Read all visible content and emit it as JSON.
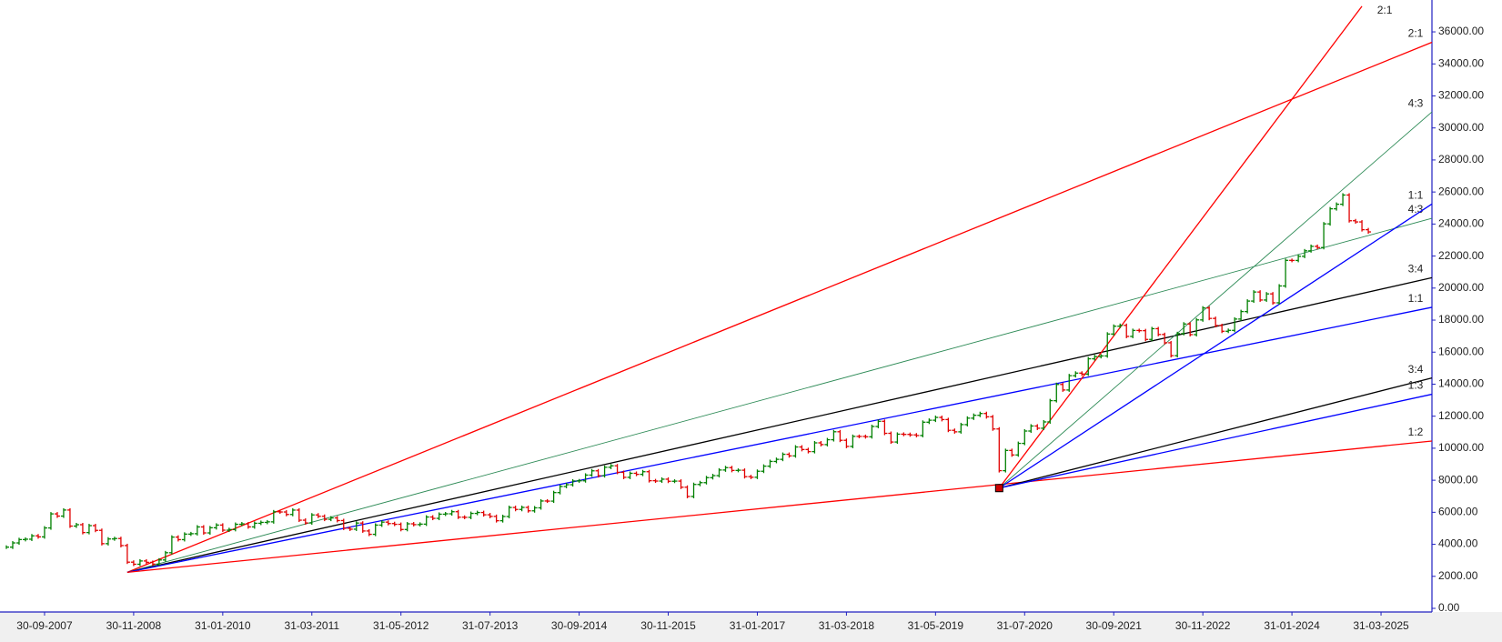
{
  "chart_data": {
    "type": "ohlc-fan",
    "xlim": [
      "28-02-2007",
      "30-11-2025"
    ],
    "xticks": [
      "30-09-2007",
      "30-11-2008",
      "31-01-2010",
      "31-03-2011",
      "31-05-2012",
      "31-07-2013",
      "30-09-2014",
      "30-11-2015",
      "31-01-2017",
      "31-03-2018",
      "31-05-2019",
      "31-07-2020",
      "30-09-2021",
      "30-11-2022",
      "31-01-2024",
      "31-03-2025"
    ],
    "ylim": [
      0,
      37990
    ],
    "yticks": [
      {
        "value": 0,
        "label": "0.00"
      },
      {
        "value": 2000,
        "label": "2000.00"
      },
      {
        "value": 4000,
        "label": "4000.00"
      },
      {
        "value": 6000,
        "label": "6000.00"
      },
      {
        "value": 8000,
        "label": "8000.00"
      },
      {
        "value": 10000,
        "label": "10000.00"
      },
      {
        "value": 12000,
        "label": "12000.00"
      },
      {
        "value": 14000,
        "label": "14000.00"
      },
      {
        "value": 16000,
        "label": "16000.00"
      },
      {
        "value": 18000,
        "label": "18000.00"
      },
      {
        "value": 20000,
        "label": "20000.00"
      },
      {
        "value": 22000,
        "label": "22000.00"
      },
      {
        "value": 24000,
        "label": "24000.00"
      },
      {
        "value": 26000,
        "label": "26000.00"
      },
      {
        "value": 28000,
        "label": "28000.00"
      },
      {
        "value": 30000,
        "label": "30000.00"
      },
      {
        "value": 32000,
        "label": "32000.00"
      },
      {
        "value": 34000,
        "label": "34000.00"
      },
      {
        "value": 36000,
        "label": "36000.00"
      }
    ],
    "up_color": "#008000",
    "down_color": "#e00000",
    "x": [
      "31-03-2007",
      "30-04-2007",
      "31-05-2007",
      "30-06-2007",
      "31-07-2007",
      "31-08-2007",
      "30-09-2007",
      "31-10-2007",
      "30-11-2007",
      "31-12-2007",
      "31-01-2008",
      "29-02-2008",
      "31-03-2008",
      "30-04-2008",
      "31-05-2008",
      "30-06-2008",
      "31-07-2008",
      "31-08-2008",
      "30-09-2008",
      "31-10-2008",
      "30-11-2008",
      "31-12-2008",
      "31-01-2009",
      "28-02-2009",
      "31-03-2009",
      "30-04-2009",
      "31-05-2009",
      "30-06-2009",
      "31-07-2009",
      "31-08-2009",
      "30-09-2009",
      "31-10-2009",
      "30-11-2009",
      "31-12-2009",
      "31-01-2010",
      "28-02-2010",
      "31-03-2010",
      "30-04-2010",
      "31-05-2010",
      "30-06-2010",
      "31-07-2010",
      "31-08-2010",
      "30-09-2010",
      "31-10-2010",
      "30-11-2010",
      "31-12-2010",
      "31-01-2011",
      "28-02-2011",
      "31-03-2011",
      "30-04-2011",
      "31-05-2011",
      "30-06-2011",
      "31-07-2011",
      "31-08-2011",
      "30-09-2011",
      "31-10-2011",
      "30-11-2011",
      "31-12-2011",
      "31-01-2012",
      "29-02-2012",
      "31-03-2012",
      "30-04-2012",
      "31-05-2012",
      "30-06-2012",
      "31-07-2012",
      "31-08-2012",
      "30-09-2012",
      "31-10-2012",
      "30-11-2012",
      "31-12-2012",
      "31-01-2013",
      "28-02-2013",
      "31-03-2013",
      "30-04-2013",
      "31-05-2013",
      "30-06-2013",
      "31-07-2013",
      "31-08-2013",
      "30-09-2013",
      "31-10-2013",
      "30-11-2013",
      "31-12-2013",
      "31-01-2014",
      "28-02-2014",
      "31-03-2014",
      "30-04-2014",
      "31-05-2014",
      "30-06-2014",
      "31-07-2014",
      "31-08-2014",
      "30-09-2014",
      "31-10-2014",
      "30-11-2014",
      "31-12-2014",
      "31-01-2015",
      "28-02-2015",
      "31-03-2015",
      "30-04-2015",
      "31-05-2015",
      "30-06-2015",
      "31-07-2015",
      "31-08-2015",
      "30-09-2015",
      "31-10-2015",
      "30-11-2015",
      "31-12-2015",
      "31-01-2016",
      "29-02-2016",
      "31-03-2016",
      "30-04-2016",
      "31-05-2016",
      "30-06-2016",
      "31-07-2016",
      "31-08-2016",
      "30-09-2016",
      "31-10-2016",
      "30-11-2016",
      "31-12-2016",
      "31-01-2017",
      "28-02-2017",
      "31-03-2017",
      "30-04-2017",
      "31-05-2017",
      "30-06-2017",
      "31-07-2017",
      "31-08-2017",
      "30-09-2017",
      "31-10-2017",
      "30-11-2017",
      "31-12-2017",
      "31-01-2018",
      "28-02-2018",
      "31-03-2018",
      "30-04-2018",
      "31-05-2018",
      "30-06-2018",
      "31-07-2018",
      "31-08-2018",
      "30-09-2018",
      "31-10-2018",
      "30-11-2018",
      "31-12-2018",
      "31-01-2019",
      "28-02-2019",
      "31-03-2019",
      "30-04-2019",
      "31-05-2019",
      "30-06-2019",
      "31-07-2019",
      "31-08-2019",
      "30-09-2019",
      "31-10-2019",
      "30-11-2019",
      "31-12-2019",
      "31-01-2020",
      "29-02-2020",
      "31-03-2020",
      "30-04-2020",
      "31-05-2020",
      "30-06-2020",
      "31-07-2020",
      "31-08-2020",
      "30-09-2020",
      "31-10-2020",
      "30-11-2020",
      "31-12-2020",
      "31-01-2021",
      "28-02-2021",
      "31-03-2021",
      "30-04-2021",
      "31-05-2021",
      "30-06-2021",
      "31-07-2021",
      "31-08-2021",
      "30-09-2021",
      "31-10-2021",
      "30-11-2021",
      "31-12-2021",
      "31-01-2022",
      "28-02-2022",
      "31-03-2022",
      "30-04-2022",
      "31-05-2022",
      "30-06-2022",
      "31-07-2022",
      "31-08-2022",
      "30-09-2022",
      "31-10-2022",
      "30-11-2022",
      "31-12-2022",
      "31-01-2023",
      "28-02-2023",
      "31-03-2023",
      "30-04-2023",
      "31-05-2023",
      "30-06-2023",
      "31-07-2023",
      "31-08-2023",
      "30-09-2023",
      "31-10-2023",
      "30-11-2023",
      "31-12-2023",
      "31-01-2024",
      "29-02-2024",
      "31-03-2024",
      "30-04-2024",
      "31-05-2024",
      "30-06-2024",
      "31-07-2024",
      "31-08-2024",
      "30-09-2024",
      "31-10-2024",
      "30-11-2024",
      "31-12-2024",
      "31-01-2025"
    ],
    "series": [
      {
        "values": [
          3822,
          4087,
          4296,
          4318,
          4528,
          4464,
          5021,
          5900,
          5762,
          6139,
          5137,
          5224,
          4734,
          5165,
          4870,
          4040,
          4333,
          4360,
          3921,
          2885,
          2755,
          2959,
          2874,
          2763,
          3021,
          3474,
          4449,
          4291,
          4636,
          4662,
          5084,
          4712,
          5033,
          5201,
          4882,
          4922,
          5249,
          5278,
          5087,
          5313,
          5368,
          5402,
          6030,
          6018,
          5863,
          6135,
          5506,
          5333,
          5834,
          5750,
          5560,
          5647,
          5482,
          5001,
          4943,
          5327,
          4832,
          4624,
          5199,
          5385,
          5296,
          5248,
          4924,
          5279,
          5229,
          5259,
          5703,
          5620,
          5880,
          5905,
          6035,
          5693,
          5683,
          5930,
          5986,
          5843,
          5742,
          5472,
          5735,
          6299,
          6176,
          6304,
          6090,
          6277,
          6704,
          6696,
          7230,
          7611,
          7721,
          7954,
          7965,
          8322,
          8588,
          8283,
          8809,
          8902,
          8491,
          8182,
          8434,
          8369,
          8533,
          7971,
          7949,
          8066,
          7935,
          7946,
          7564,
          6987,
          7738,
          7850,
          8160,
          8288,
          8639,
          8786,
          8611,
          8626,
          8224,
          8186,
          8561,
          8880,
          9174,
          9304,
          9621,
          9521,
          10077,
          9918,
          9789,
          10335,
          10227,
          10531,
          11028,
          10493,
          10114,
          10739,
          10736,
          10714,
          11357,
          11681,
          10930,
          10387,
          10877,
          10863,
          10831,
          10793,
          11624,
          11748,
          11923,
          11789,
          11118,
          11023,
          11474,
          11877,
          12056,
          12168,
          11962,
          11202,
          8598,
          9860,
          9580,
          10302,
          11073,
          11388,
          11248,
          11642,
          12969,
          13982,
          13635,
          14529,
          14691,
          14631,
          15583,
          15722,
          15763,
          17132,
          17618,
          17672,
          16983,
          17354,
          17340,
          16794,
          17465,
          17103,
          16585,
          15780,
          17158,
          17759,
          17094,
          18012,
          18758,
          18105,
          17662,
          17304,
          17360,
          18065,
          18534,
          19189,
          19754,
          19254,
          19638,
          19080,
          20133,
          21731,
          21726,
          21983,
          22327,
          22605,
          22531,
          24011,
          24951,
          25236,
          25811,
          24205,
          24131,
          23645,
          23508
        ]
      }
    ],
    "fan_lines": [
      {
        "label": "2:1",
        "color": "#ff0000",
        "from": {
          "x": "31-10-2008",
          "y": 2252
        },
        "to": {
          "x": "30-11-2025",
          "y": 35350
        }
      },
      {
        "label": "4:3",
        "color": "#2e8b57",
        "from": {
          "x": "31-10-2008",
          "y": 2252
        },
        "to": {
          "x": "30-11-2025",
          "y": 24360
        }
      },
      {
        "label": "3:4",
        "color": "#000000",
        "from": {
          "x": "31-10-2008",
          "y": 2252
        },
        "to": {
          "x": "30-11-2025",
          "y": 20650
        }
      },
      {
        "label": "1:1",
        "color": "#0000ff",
        "from": {
          "x": "31-10-2008",
          "y": 2252
        },
        "to": {
          "x": "30-11-2025",
          "y": 18800
        }
      },
      {
        "label": "1:2",
        "color": "#ff0000",
        "from": {
          "x": "31-10-2008",
          "y": 2252
        },
        "to": {
          "x": "30-11-2025",
          "y": 10450
        }
      },
      {
        "label": "2:1",
        "color": "#ff0000",
        "from": {
          "x": "31-03-2020",
          "y": 7511
        },
        "to": {
          "x": "31-12-2024",
          "y": 37600
        }
      },
      {
        "label": "4:3",
        "color": "#2e8b57",
        "from": {
          "x": "31-03-2020",
          "y": 7511
        },
        "to": {
          "x": "30-11-2025",
          "y": 31000
        }
      },
      {
        "label": "1:1",
        "color": "#0000ff",
        "from": {
          "x": "31-03-2020",
          "y": 7511
        },
        "to": {
          "x": "30-11-2025",
          "y": 25250
        }
      },
      {
        "label": "3:4",
        "color": "#000000",
        "from": {
          "x": "31-03-2020",
          "y": 7511
        },
        "to": {
          "x": "30-11-2025",
          "y": 14390
        }
      },
      {
        "label": "1:3",
        "color": "#0000ff",
        "from": {
          "x": "31-03-2020",
          "y": 7511
        },
        "to": {
          "x": "30-11-2025",
          "y": 13370
        }
      }
    ]
  }
}
